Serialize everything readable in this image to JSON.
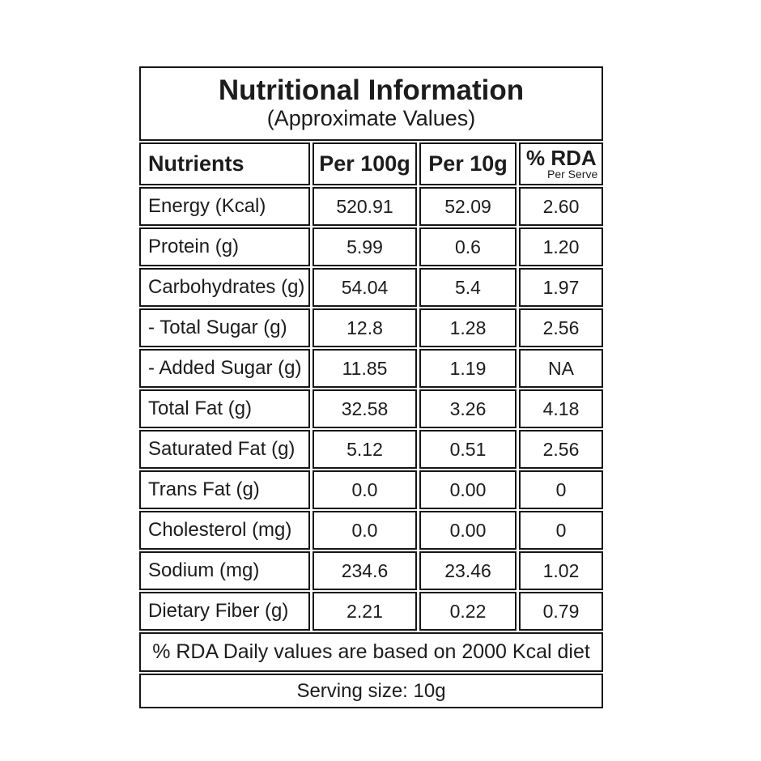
{
  "colors": {
    "border": "#161616",
    "text": "#1c1c1c",
    "background": "#ffffff"
  },
  "table": {
    "title": "Nutritional Information",
    "subtitle": "(Approximate Values)",
    "columns": {
      "nutrients": "Nutrients",
      "per_100g": "Per 100g",
      "per_10g": "Per 10g",
      "rda": "% RDA",
      "rda_sub": "Per Serve"
    },
    "rows": [
      {
        "nutrient": "Energy (Kcal)",
        "per_100g": "520.91",
        "per_10g": "52.09",
        "rda": "2.60"
      },
      {
        "nutrient": "Protein (g)",
        "per_100g": "5.99",
        "per_10g": "0.6",
        "rda": "1.20"
      },
      {
        "nutrient": "Carbohydrates (g)",
        "per_100g": "54.04",
        "per_10g": "5.4",
        "rda": "1.97"
      },
      {
        "nutrient": "- Total Sugar (g)",
        "per_100g": "12.8",
        "per_10g": "1.28",
        "rda": "2.56"
      },
      {
        "nutrient": "- Added Sugar (g)",
        "per_100g": "11.85",
        "per_10g": "1.19",
        "rda": "NA"
      },
      {
        "nutrient": "Total Fat (g)",
        "per_100g": "32.58",
        "per_10g": "3.26",
        "rda": "4.18"
      },
      {
        "nutrient": "Saturated Fat (g)",
        "per_100g": "5.12",
        "per_10g": "0.51",
        "rda": "2.56"
      },
      {
        "nutrient": "Trans Fat (g)",
        "per_100g": "0.0",
        "per_10g": "0.00",
        "rda": "0"
      },
      {
        "nutrient": "Cholesterol (mg)",
        "per_100g": "0.0",
        "per_10g": "0.00",
        "rda": "0"
      },
      {
        "nutrient": "Sodium (mg)",
        "per_100g": "234.6",
        "per_10g": "23.46",
        "rda": "1.02"
      },
      {
        "nutrient": "Dietary Fiber (g)",
        "per_100g": "2.21",
        "per_10g": "0.22",
        "rda": "0.79"
      }
    ],
    "footnote": "% RDA Daily values are based on 2000 Kcal diet",
    "serving": "Serving size: 10g"
  }
}
